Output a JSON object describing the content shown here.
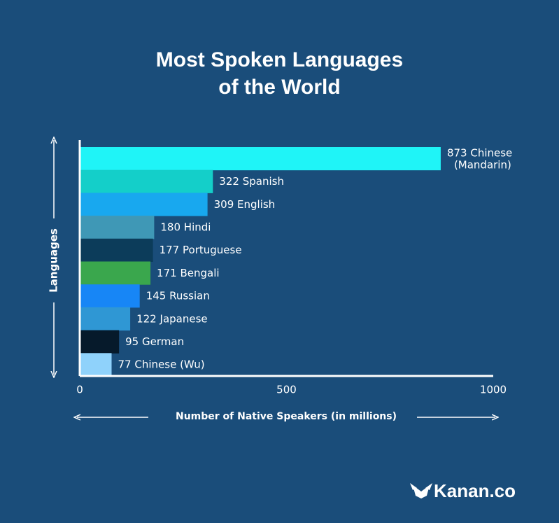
{
  "chart_data": {
    "type": "barh",
    "title": "Most Spoken Languages of the World",
    "ylabel": "Languages",
    "xlabel": "Number of Native Speakers (in millions)",
    "categories": [
      "Chinese (Mandarin)",
      "Spanish",
      "English",
      "Hindi",
      "Portuguese",
      "Bengali",
      "Russian",
      "Japanese",
      "German",
      "Chinese (Wu)"
    ],
    "values": [
      873,
      322,
      309,
      180,
      177,
      171,
      145,
      122,
      95,
      77
    ],
    "colors": [
      "#1ff4f7",
      "#14cfc9",
      "#18a8ef",
      "#3f98b6",
      "#0c3c5a",
      "#3aa74d",
      "#1786f6",
      "#2f97d4",
      "#061a2b",
      "#8fd2fb"
    ],
    "xlim": [
      0,
      1000
    ],
    "xticks": [
      0,
      500,
      1000
    ],
    "logo": "Kanan.co"
  }
}
